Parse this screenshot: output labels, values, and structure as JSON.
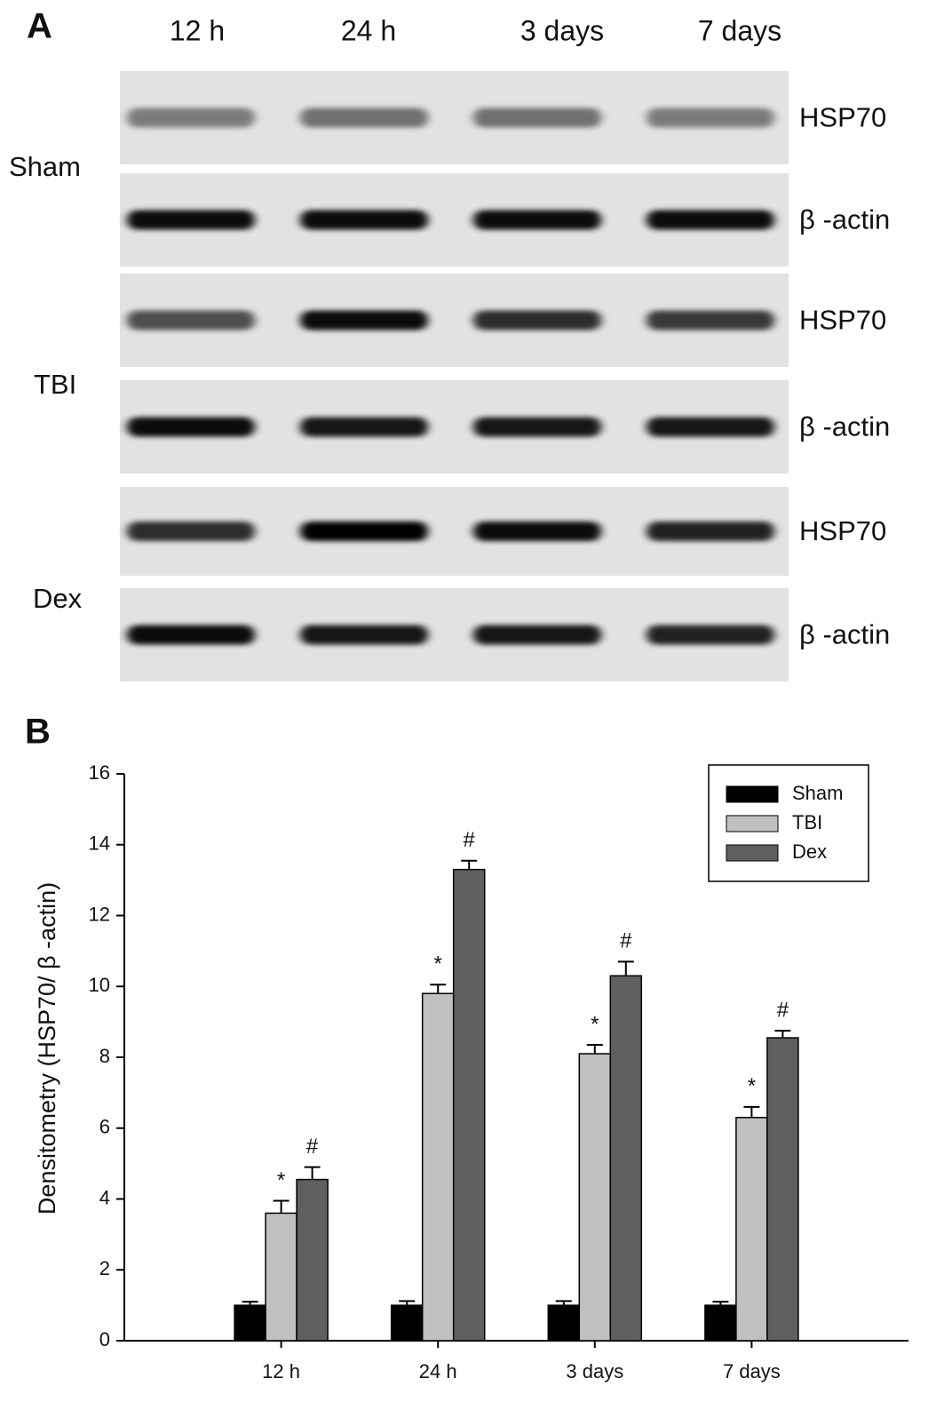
{
  "panel_a": {
    "label": "A",
    "columns": [
      "12 h",
      "24 h",
      "3 days",
      "7 days"
    ],
    "groups": [
      {
        "name": "Sham",
        "rows": [
          "HSP70",
          "β -actin"
        ]
      },
      {
        "name": "TBI",
        "rows": [
          "HSP70",
          "β -actin"
        ]
      },
      {
        "name": "Dex",
        "rows": [
          "HSP70",
          "β -actin"
        ]
      }
    ]
  },
  "chart_data": {
    "type": "bar",
    "panel_label": "B",
    "y_label": "Densitometry (HSP70/ β -actin)",
    "categories": [
      "12 h",
      "24 h",
      "3 days",
      "7 days"
    ],
    "series": [
      {
        "name": "Sham",
        "color": "#000000",
        "values": [
          1,
          1,
          1,
          1
        ],
        "errors": [
          0.1,
          0.12,
          0.12,
          0.1
        ]
      },
      {
        "name": "TBI",
        "color": "#c0c0c0",
        "values": [
          3.6,
          9.8,
          8.1,
          6.3
        ],
        "errors": [
          0.35,
          0.25,
          0.25,
          0.3
        ],
        "markers": [
          "*",
          "*",
          "*",
          "*"
        ]
      },
      {
        "name": "Dex",
        "color": "#606060",
        "values": [
          4.55,
          13.3,
          10.3,
          8.55
        ],
        "errors": [
          0.35,
          0.25,
          0.4,
          0.2
        ],
        "markers": [
          "#",
          "#",
          "#",
          "#"
        ]
      }
    ],
    "ylim": [
      0,
      16
    ],
    "yticks": [
      0,
      2,
      4,
      6,
      8,
      10,
      12,
      14,
      16
    ],
    "legend": "upper-right"
  }
}
